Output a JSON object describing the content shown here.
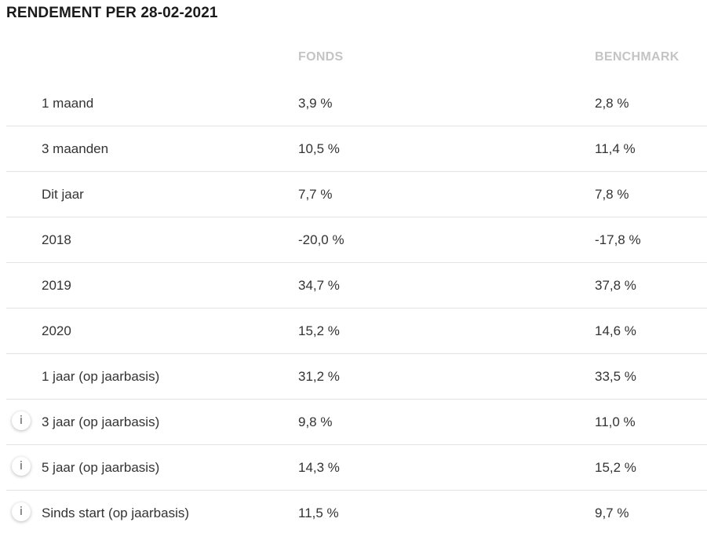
{
  "title": "RENDEMENT PER 28-02-2021",
  "headers": {
    "fonds": "FONDS",
    "benchmark": "BENCHMARK"
  },
  "rows": [
    {
      "label": "1 maand",
      "fonds": "3,9 %",
      "benchmark": "2,8 %",
      "info": false
    },
    {
      "label": "3 maanden",
      "fonds": "10,5 %",
      "benchmark": "11,4 %",
      "info": false
    },
    {
      "label": "Dit jaar",
      "fonds": "7,7 %",
      "benchmark": "7,8 %",
      "info": false
    },
    {
      "label": "2018",
      "fonds": "-20,0 %",
      "benchmark": "-17,8 %",
      "info": false
    },
    {
      "label": "2019",
      "fonds": "34,7 %",
      "benchmark": "37,8 %",
      "info": false
    },
    {
      "label": "2020",
      "fonds": "15,2 %",
      "benchmark": "14,6 %",
      "info": false
    },
    {
      "label": "1 jaar (op jaarbasis)",
      "fonds": "31,2 %",
      "benchmark": "33,5 %",
      "info": false
    },
    {
      "label": "3 jaar (op jaarbasis)",
      "fonds": "9,8 %",
      "benchmark": "11,0 %",
      "info": true
    },
    {
      "label": "5 jaar (op jaarbasis)",
      "fonds": "14,3 %",
      "benchmark": "15,2 %",
      "info": true
    },
    {
      "label": "Sinds start (op jaarbasis)",
      "fonds": "11,5 %",
      "benchmark": "9,7 %",
      "info": true
    }
  ],
  "info_icon": {
    "glyph": "i",
    "name": "info-icon"
  }
}
